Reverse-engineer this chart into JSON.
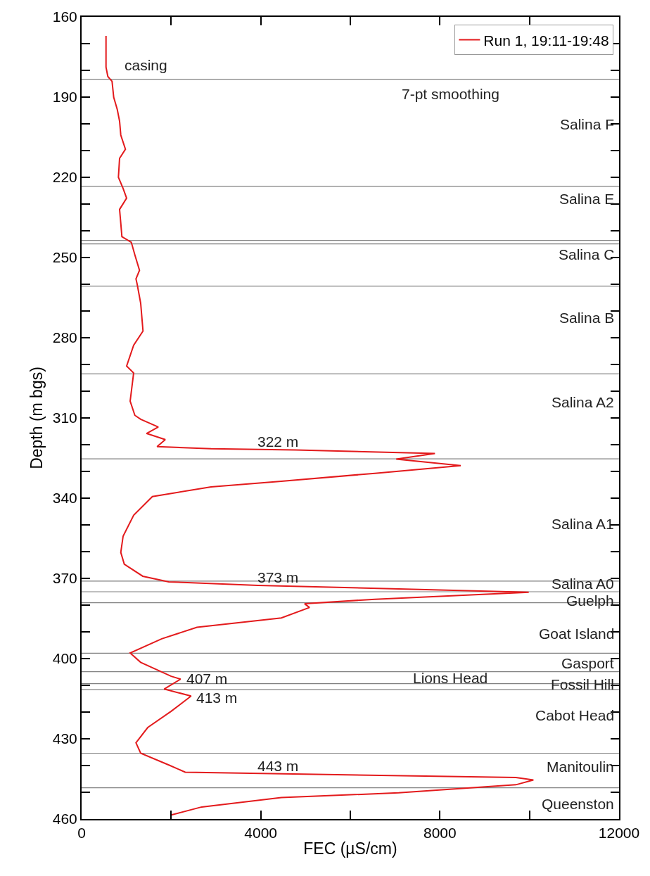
{
  "chart_data": {
    "type": "line",
    "xlabel": "FEC (µS/cm)",
    "ylabel": "Depth (m bgs)",
    "xlim": [
      0,
      12000
    ],
    "xticks": [
      0,
      {
        "value": 2000,
        "label": null
      },
      4000,
      {
        "value": 6000,
        "label": null
      },
      8000,
      {
        "value": 10000,
        "label": null
      },
      12000
    ],
    "ylim": [
      460,
      160
    ],
    "yticks": [
      160,
      {
        "value": 170,
        "label": null
      },
      {
        "value": 180,
        "label": null
      },
      190,
      {
        "value": 200,
        "label": null
      },
      {
        "value": 210,
        "label": null
      },
      220,
      {
        "value": 230,
        "label": null
      },
      {
        "value": 240,
        "label": null
      },
      250,
      {
        "value": 260,
        "label": null
      },
      {
        "value": 270,
        "label": null
      },
      280,
      {
        "value": 290,
        "label": null
      },
      {
        "value": 300,
        "label": null
      },
      310,
      {
        "value": 320,
        "label": null
      },
      {
        "value": 330,
        "label": null
      },
      340,
      {
        "value": 350,
        "label": null
      },
      {
        "value": 360,
        "label": null
      },
      370,
      {
        "value": 380,
        "label": null
      },
      {
        "value": 390,
        "label": null
      },
      400,
      {
        "value": 410,
        "label": null
      },
      {
        "value": 420,
        "label": null
      },
      430,
      {
        "value": 440,
        "label": null
      },
      {
        "value": 450,
        "label": null
      },
      460
    ],
    "grid": false,
    "legend": "top right",
    "marker": "none",
    "line_style": "solid",
    "series": [
      {
        "name": "Run 1, 19:11-19:48",
        "color": "#e31a1c",
        "x": [
          545,
          545,
          586,
          680,
          717,
          796,
          848,
          875,
          979,
          848,
          822,
          927,
          1005,
          848,
          875,
          900,
          1110,
          1189,
          1293,
          1214,
          1241,
          1319,
          1371,
          1162,
          1005,
          1162,
          1084,
          1189,
          1319,
          1712,
          1450,
          1869,
          1685,
          2890,
          4775,
          7889,
          7025,
          8466,
          6549,
          4460,
          2890,
          1581,
          1162,
          927,
          875,
          953,
          1366,
          1948,
          3937,
          9984,
          6549,
          4979,
          5089,
          4460,
          2576,
          1790,
          1084,
          1319,
          2000,
          2210,
          1843,
          2445,
          2000,
          1476,
          1214,
          1319,
          1948,
          2314,
          9696,
          10088,
          9696,
          7078,
          4460,
          2681,
          2000
        ],
        "values": [
          167.1,
          178.8,
          182.3,
          184.1,
          190.1,
          194.6,
          199.0,
          204.2,
          209.5,
          212.9,
          220.0,
          224.2,
          227.8,
          232.0,
          237.2,
          242.2,
          244.3,
          249.0,
          254.8,
          258.0,
          260.0,
          267.1,
          277.5,
          282.8,
          290.6,
          293.2,
          303.7,
          309.0,
          310.5,
          313.4,
          315.8,
          318.1,
          320.7,
          321.5,
          322.0,
          323.3,
          325.4,
          327.8,
          330.7,
          333.7,
          335.8,
          339.4,
          346.4,
          354.2,
          360.3,
          364.7,
          369.2,
          371.3,
          372.6,
          375.2,
          377.8,
          379.5,
          380.9,
          384.8,
          388.3,
          392.6,
          397.9,
          401.4,
          406.6,
          407.7,
          411.4,
          414.0,
          419.7,
          425.8,
          431.5,
          435.4,
          439.8,
          442.5,
          444.5,
          445.4,
          447.2,
          450.2,
          452.0,
          455.5,
          458.5
        ]
      }
    ],
    "ref_lines": [
      {
        "axis": "y",
        "value": 183.3,
        "color": "#808080"
      },
      {
        "axis": "y",
        "value": 223.4,
        "color": "#808080"
      },
      {
        "axis": "y",
        "value": 243.6,
        "color": "#808080"
      },
      {
        "axis": "y",
        "value": 244.9,
        "color": "#808080"
      },
      {
        "axis": "y",
        "value": 260.7,
        "color": "#808080"
      },
      {
        "axis": "y",
        "value": 293.5,
        "color": "#808080"
      },
      {
        "axis": "y",
        "value": 325.3,
        "color": "#808080"
      },
      {
        "axis": "y",
        "value": 371.0,
        "color": "#808080"
      },
      {
        "axis": "y",
        "value": 375.0,
        "color": "#808080"
      },
      {
        "axis": "y",
        "value": 379.1,
        "color": "#808080"
      },
      {
        "axis": "y",
        "value": 398.0,
        "color": "#808080"
      },
      {
        "axis": "y",
        "value": 404.9,
        "color": "#808080"
      },
      {
        "axis": "y",
        "value": 409.4,
        "color": "#808080"
      },
      {
        "axis": "y",
        "value": 411.6,
        "color": "#808080"
      },
      {
        "axis": "y",
        "value": 435.4,
        "color": "#808080"
      },
      {
        "axis": "y",
        "value": 448.3,
        "color": "#808080"
      }
    ],
    "annotations": [
      "casing",
      "7-pt smoothing",
      "Salina F",
      "Salina E",
      "Salina C",
      "Salina B",
      "Salina A2",
      "322 m",
      "Salina A1",
      "373 m",
      "Salina A0",
      "Guelph",
      "Goat Island",
      "Gasport",
      "Lions Head",
      "Fossil Hill",
      "Cabot Head",
      "Manitoulin",
      "443 m",
      "Queenston",
      {
        "text": "407 m",
        "x": 2310,
        "y": 407.4
      },
      {
        "text": "413 m",
        "x": 2530,
        "y": 414.5
      }
    ]
  }
}
